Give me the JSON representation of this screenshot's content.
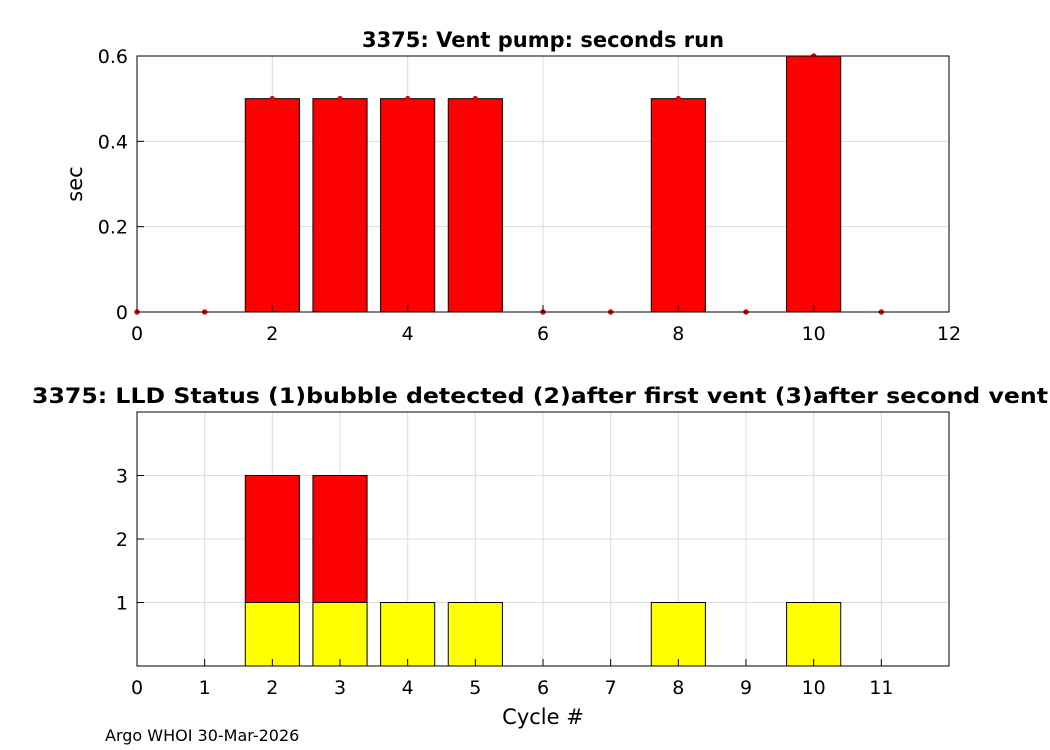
{
  "chart_data": [
    {
      "type": "bar",
      "title": "3375: Vent pump: seconds run",
      "ylabel": "sec",
      "xlabel": "",
      "xlim": [
        0,
        12
      ],
      "ylim": [
        0,
        0.6
      ],
      "xticks": [
        0,
        2,
        4,
        6,
        8,
        10,
        12
      ],
      "yticks": [
        0,
        0.2,
        0.4,
        0.6
      ],
      "grid": true,
      "bar_color": "#ff0000",
      "x": [
        0,
        1,
        2,
        3,
        4,
        5,
        6,
        7,
        8,
        9,
        10,
        11
      ],
      "values": [
        0,
        0,
        0.5,
        0.5,
        0.5,
        0.5,
        0,
        0,
        0.5,
        0,
        0.6,
        0
      ]
    },
    {
      "type": "bar",
      "stacked": true,
      "title": "3375: LLD Status   (1)bubble detected   (2)after first vent  (3)after second vent",
      "xlabel": "Cycle #",
      "ylabel": "",
      "xlim": [
        0,
        12
      ],
      "ylim": [
        0,
        4
      ],
      "xticks": [
        0,
        1,
        2,
        3,
        4,
        5,
        6,
        7,
        8,
        9,
        10,
        11
      ],
      "yticks": [
        1,
        2,
        3
      ],
      "grid": true,
      "x": [
        2,
        3,
        4,
        5,
        8,
        10
      ],
      "series": [
        {
          "color": "#ffff00",
          "values": [
            1,
            1,
            1,
            1,
            1,
            1
          ]
        },
        {
          "color": "#ff0000",
          "values": [
            2,
            2,
            0,
            0,
            0,
            0
          ]
        }
      ]
    }
  ],
  "footer": "Argo WHOI 30-Mar-2026"
}
